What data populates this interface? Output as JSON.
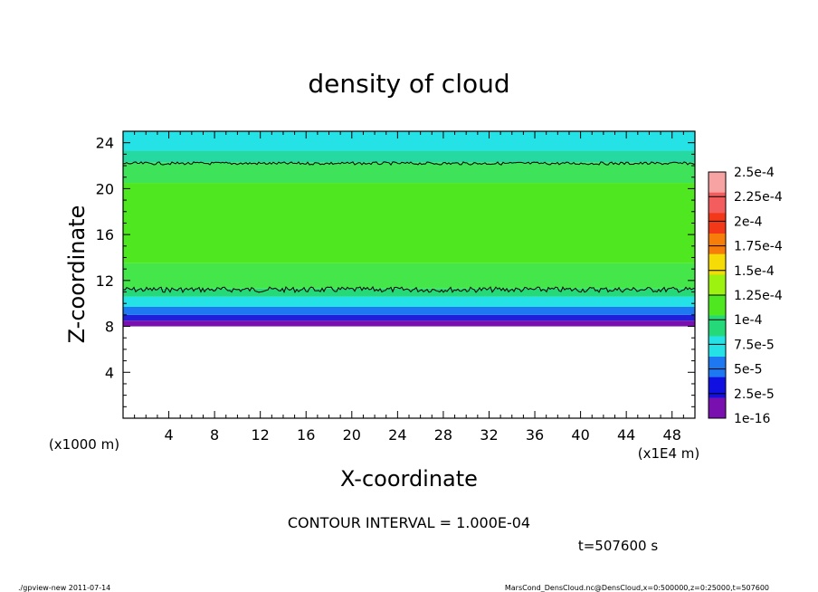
{
  "chart_data": {
    "type": "heatmap",
    "title": "density of cloud",
    "xlabel": "X-coordinate",
    "ylabel": "Z-coordinate",
    "x_unit_label": "(x1E4 m)",
    "y_unit_label": "(x1000 m)",
    "xlim": [
      0,
      50
    ],
    "ylim": [
      0,
      25
    ],
    "x_ticks": [
      4,
      8,
      12,
      16,
      20,
      24,
      28,
      32,
      36,
      40,
      44,
      48
    ],
    "y_ticks": [
      4,
      8,
      12,
      16,
      20,
      24
    ],
    "x_tick_labels": [
      "4",
      "8",
      "12",
      "16",
      "20",
      "24",
      "28",
      "32",
      "36",
      "40",
      "44",
      "48"
    ],
    "y_tick_labels": [
      "4",
      "8",
      "12",
      "16",
      "20",
      "24"
    ],
    "contour_interval_text": "CONTOUR INTERVAL = 1.000E-04",
    "time_text": "t=507600 s",
    "colorbar": {
      "labels": [
        "2.5e-4",
        "2.25e-4",
        "2e-4",
        "1.75e-4",
        "1.5e-4",
        "1.25e-4",
        "1e-4",
        "7.5e-5",
        "5e-5",
        "2.5e-5",
        "1e-16"
      ],
      "colors": [
        "#f7a3a3",
        "#f35d5d",
        "#f23818",
        "#f77d0a",
        "#f5dc06",
        "#9ef20f",
        "#4fe820",
        "#25d979",
        "#24e2e6",
        "#1e78f2",
        "#1010e0",
        "#7a0fb0"
      ]
    },
    "layers": [
      {
        "z_bottom": 8.0,
        "z_top": 8.5,
        "color": "#7a0fb0"
      },
      {
        "z_bottom": 8.5,
        "z_top": 9.0,
        "color": "#2020d8"
      },
      {
        "z_bottom": 9.0,
        "z_top": 9.7,
        "color": "#1e78f2"
      },
      {
        "z_bottom": 9.7,
        "z_top": 10.6,
        "color": "#24e2e6"
      },
      {
        "z_bottom": 10.6,
        "z_top": 11.3,
        "color": "#25d979"
      },
      {
        "z_bottom": 11.3,
        "z_top": 13.5,
        "color": "#45e64a"
      },
      {
        "z_bottom": 13.5,
        "z_top": 20.5,
        "color": "#4fe820"
      },
      {
        "z_bottom": 20.5,
        "z_top": 22.3,
        "color": "#3fe35a"
      },
      {
        "z_bottom": 22.3,
        "z_top": 23.3,
        "color": "#25d9a0"
      },
      {
        "z_bottom": 23.3,
        "z_top": 25.0,
        "color": "#24e2e6"
      }
    ],
    "contours": [
      {
        "level": "1e-4",
        "z": 11.2
      },
      {
        "level": "1e-4",
        "z": 22.2
      }
    ],
    "grid": false,
    "legend_placement": "right colorbar"
  },
  "footer": {
    "left": "./gpview-new  2011-07-14",
    "right": "MarsCond_DensCloud.nc@DensCloud,x=0:500000,z=0:25000,t=507600"
  }
}
